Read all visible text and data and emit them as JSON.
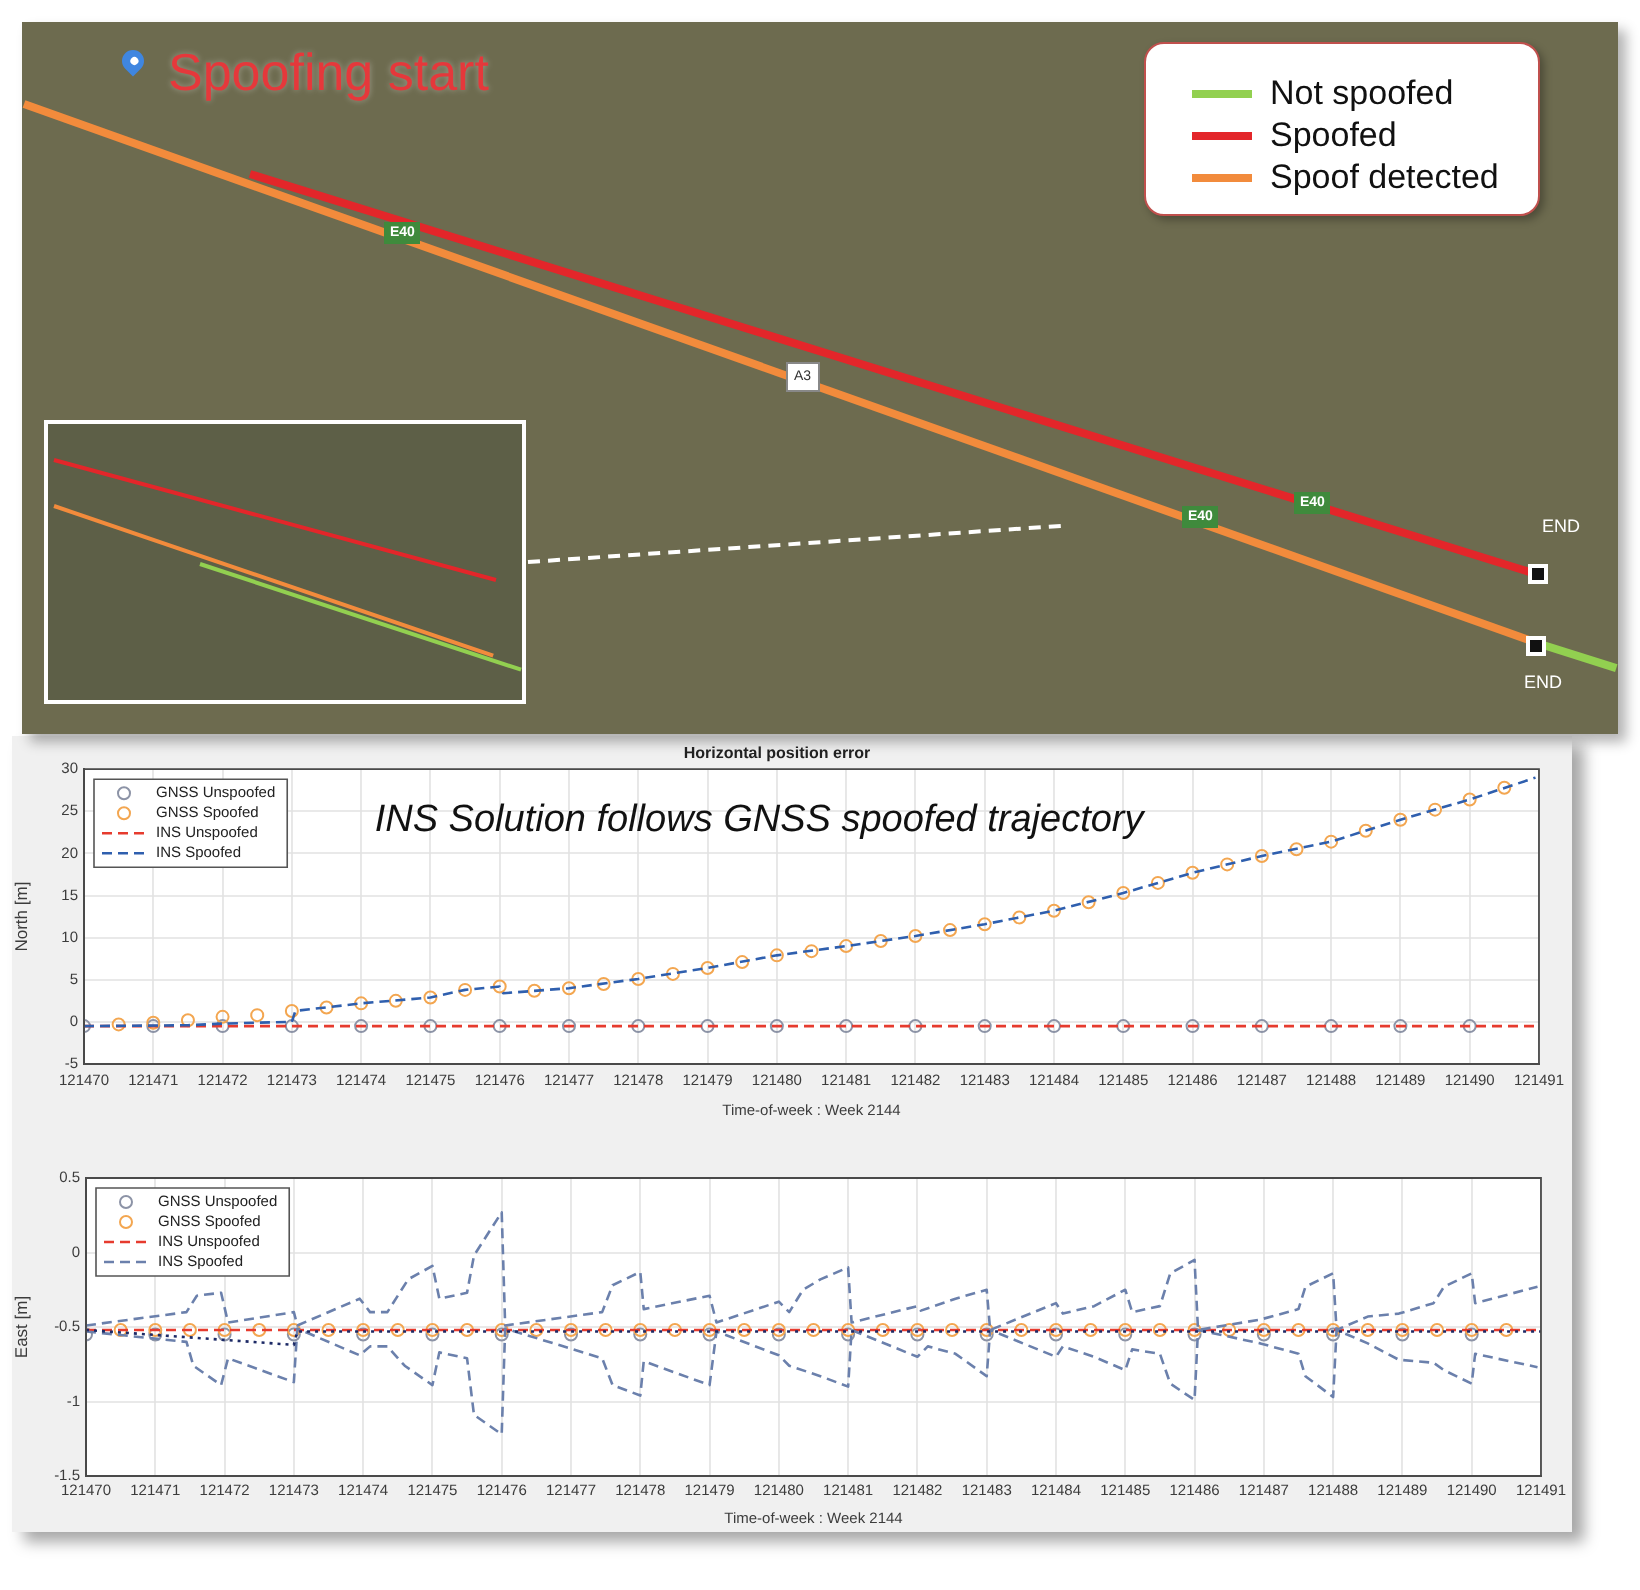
{
  "chart_data": [
    {
      "type": "other",
      "legend": "top right",
      "series": [
        {
          "name": "Not spoofed",
          "color": "#92d050"
        },
        {
          "name": "Spoofed",
          "color": "#e3262a"
        },
        {
          "name": "Spoof detected",
          "color": "#f28b3c"
        }
      ],
      "annotations": [
        "Spoofing start",
        "E40",
        "E40",
        "E40",
        "A3",
        "END",
        "END"
      ]
    },
    {
      "type": "line",
      "title": "Horizontal position error",
      "xlabel": "Time-of-week : Week 2144",
      "ylabel": "North [m]",
      "annotations": [
        "INS Solution follows GNSS spoofed trajectory"
      ],
      "xlim": [
        121470,
        121491
      ],
      "xticks": [
        121470,
        121471,
        121472,
        121473,
        121474,
        121475,
        121476,
        121477,
        121478,
        121479,
        121480,
        121481,
        121482,
        121483,
        121484,
        121485,
        121486,
        121487,
        121488,
        121489,
        121490,
        121491
      ],
      "ylim": [
        -5,
        30
      ],
      "yticks": [
        -5,
        0,
        5,
        10,
        15,
        20,
        25,
        30
      ],
      "grid": true,
      "legend": "top left",
      "series": [
        {
          "name": "GNSS Unspoofed",
          "type": "scatter",
          "marker": "circle",
          "color": "#8c93a6",
          "x": [
            121470,
            121471,
            121472,
            121473,
            121474,
            121475,
            121476,
            121477,
            121478,
            121479,
            121480,
            121481,
            121482,
            121483,
            121484,
            121485,
            121486,
            121487,
            121488,
            121489,
            121490
          ],
          "values": [
            -0.5,
            -0.5,
            -0.5,
            -0.5,
            -0.5,
            -0.5,
            -0.5,
            -0.5,
            -0.5,
            -0.5,
            -0.5,
            -0.5,
            -0.5,
            -0.5,
            -0.5,
            -0.5,
            -0.5,
            -0.5,
            -0.5,
            -0.5,
            -0.5
          ]
        },
        {
          "name": "GNSS Spoofed",
          "type": "scatter",
          "marker": "circle",
          "color": "#f3a650",
          "x": [
            121470.5,
            121471,
            121471.5,
            121472,
            121472.5,
            121473,
            121473.5,
            121474,
            121474.5,
            121475,
            121475.5,
            121476,
            121476.5,
            121477,
            121477.5,
            121478,
            121478.5,
            121479,
            121479.5,
            121480,
            121480.5,
            121481,
            121481.5,
            121482,
            121482.5,
            121483,
            121483.5,
            121484,
            121484.5,
            121485,
            121485.5,
            121486,
            121486.5,
            121487,
            121487.5,
            121488,
            121488.5,
            121489,
            121489.5,
            121490,
            121490.5
          ],
          "values": [
            -0.3,
            -0.1,
            0.2,
            0.6,
            0.8,
            1.3,
            1.7,
            2.2,
            2.5,
            2.9,
            3.8,
            4.2,
            3.7,
            4,
            4.5,
            5.1,
            5.7,
            6.4,
            7.1,
            7.9,
            8.4,
            9,
            9.6,
            10.2,
            10.9,
            11.6,
            12.4,
            13.2,
            14.2,
            15.3,
            16.5,
            17.7,
            18.7,
            19.7,
            20.5,
            21.4,
            22.7,
            24,
            25.2,
            26.4,
            27.8
          ]
        },
        {
          "name": "INS Unspoofed",
          "type": "line",
          "line_style": "dashed",
          "color": "#e63b2e",
          "x": [
            121470,
            121491
          ],
          "values": [
            -0.5,
            -0.5
          ]
        },
        {
          "name": "INS Spoofed",
          "type": "line",
          "line_style": "dashed",
          "color": "#2f5fae",
          "x": [
            121470,
            121471.5,
            121472,
            121473,
            121473.05,
            121474,
            121475,
            121475.5,
            121476,
            121476.05,
            121477,
            121478,
            121479,
            121480,
            121481,
            121482,
            121483,
            121484,
            121485,
            121486,
            121487,
            121488,
            121489,
            121490,
            121490.95
          ],
          "values": [
            -0.5,
            -0.4,
            -0.2,
            0,
            1.3,
            2.2,
            2.9,
            3.8,
            4.2,
            3.4,
            4,
            5.1,
            6.4,
            7.9,
            9,
            10.2,
            11.6,
            13.2,
            15.3,
            17.7,
            19.7,
            21.4,
            24,
            26.4,
            29
          ]
        }
      ]
    },
    {
      "type": "line",
      "xlabel": "Time-of-week : Week 2144",
      "ylabel": "East [m]",
      "xlim": [
        121470,
        121491
      ],
      "xticks": [
        121470,
        121471,
        121472,
        121473,
        121474,
        121475,
        121476,
        121477,
        121478,
        121479,
        121480,
        121481,
        121482,
        121483,
        121484,
        121485,
        121486,
        121487,
        121488,
        121489,
        121490,
        121491
      ],
      "ylim": [
        -1.5,
        0.5
      ],
      "yticks": [
        -1.5,
        -1,
        -0.5,
        0,
        0.5
      ],
      "grid": true,
      "legend": "top left",
      "series": [
        {
          "name": "GNSS Unspoofed",
          "type": "scatter",
          "marker": "circle",
          "color": "#8c93a6",
          "x": [
            121470,
            121471,
            121472,
            121473,
            121474,
            121475,
            121476,
            121477,
            121478,
            121479,
            121480,
            121481,
            121482,
            121483,
            121484,
            121485,
            121486,
            121487,
            121488,
            121489,
            121490
          ],
          "values": [
            -0.55,
            -0.55,
            -0.55,
            -0.55,
            -0.55,
            -0.55,
            -0.55,
            -0.55,
            -0.55,
            -0.55,
            -0.55,
            -0.55,
            -0.55,
            -0.55,
            -0.55,
            -0.55,
            -0.55,
            -0.55,
            -0.55,
            -0.55,
            -0.55
          ]
        },
        {
          "name": "GNSS Spoofed",
          "type": "scatter",
          "marker": "circle",
          "color": "#f3a650",
          "x": [
            121470.5,
            121471,
            121471.5,
            121472,
            121472.5,
            121473,
            121473.5,
            121474,
            121474.5,
            121475,
            121475.5,
            121476,
            121476.5,
            121477,
            121477.5,
            121478,
            121478.5,
            121479,
            121479.5,
            121480,
            121480.5,
            121481,
            121481.5,
            121482,
            121482.5,
            121483,
            121483.5,
            121484,
            121484.5,
            121485,
            121485.5,
            121486,
            121486.5,
            121487,
            121487.5,
            121488,
            121488.5,
            121489,
            121489.5,
            121490,
            121490.5
          ],
          "values": [
            -0.52,
            -0.52,
            -0.52,
            -0.52,
            -0.52,
            -0.52,
            -0.52,
            -0.52,
            -0.52,
            -0.52,
            -0.52,
            -0.52,
            -0.52,
            -0.52,
            -0.52,
            -0.52,
            -0.52,
            -0.52,
            -0.52,
            -0.52,
            -0.52,
            -0.52,
            -0.52,
            -0.52,
            -0.52,
            -0.52,
            -0.52,
            -0.52,
            -0.52,
            -0.52,
            -0.52,
            -0.52,
            -0.52,
            -0.52,
            -0.52,
            -0.52,
            -0.52,
            -0.52,
            -0.52,
            -0.52,
            -0.52
          ]
        },
        {
          "name": "INS Unspoofed",
          "type": "line",
          "line_style": "dashed",
          "color": "#e63b2e",
          "x": [
            121470,
            121491
          ],
          "values": [
            -0.52,
            -0.52
          ]
        },
        {
          "name": "INS Spoofed",
          "type": "line",
          "line_style": "dashed",
          "color": "#6b80ac",
          "x": [
            121470,
            121471.45,
            121471.6,
            121471.95,
            121472.05,
            121473,
            121473.05,
            121473.95,
            121474.1,
            121474.35,
            121474.65,
            121475,
            121475.1,
            121475.5,
            121475.6,
            121476,
            121476.05,
            121477.45,
            121477.6,
            121478,
            121478.05,
            121479,
            121479.1,
            121480,
            121480.15,
            121480.35,
            121480.6,
            121481,
            121481.05,
            121482,
            121482.05,
            121482.55,
            121483,
            121483.05,
            121484,
            121484.1,
            121484.55,
            121485,
            121485.1,
            121485.5,
            121485.65,
            121486,
            121486.05,
            121486.95,
            121487.5,
            121487.6,
            121488,
            121488.05,
            121488.5,
            121488.95,
            121489.45,
            121489.6,
            121490,
            121490.05,
            121490.95
          ],
          "values": [
            -0.49,
            -0.4,
            -0.29,
            -0.27,
            -0.47,
            -0.4,
            -0.49,
            -0.31,
            -0.4,
            -0.4,
            -0.18,
            -0.09,
            -0.31,
            -0.27,
            -0.02,
            0.27,
            -0.49,
            -0.4,
            -0.22,
            -0.13,
            -0.38,
            -0.29,
            -0.47,
            -0.33,
            -0.4,
            -0.25,
            -0.18,
            -0.1,
            -0.47,
            -0.36,
            -0.39,
            -0.31,
            -0.25,
            -0.52,
            -0.34,
            -0.41,
            -0.36,
            -0.25,
            -0.4,
            -0.36,
            -0.14,
            -0.05,
            -0.52,
            -0.45,
            -0.38,
            -0.23,
            -0.14,
            -0.52,
            -0.43,
            -0.41,
            -0.34,
            -0.23,
            -0.14,
            -0.34,
            -0.23
          ]
        },
        {
          "type": "line",
          "line_style": "dashed",
          "color": "#6b80ac",
          "x": [
            121470,
            121471.45,
            121471.55,
            121471.95,
            121472.05,
            121473,
            121473.05,
            121473.95,
            121474.1,
            121474.35,
            121474.6,
            121475,
            121475.1,
            121475.5,
            121475.6,
            121476,
            121476.05,
            121477.45,
            121477.6,
            121478,
            121478.05,
            121479,
            121479.1,
            121480,
            121480.15,
            121480.6,
            121481,
            121481.05,
            121482,
            121482.15,
            121482.55,
            121483,
            121483.05,
            121484,
            121484.1,
            121484.55,
            121485,
            121485.1,
            121485.5,
            121485.65,
            121486,
            121486.05,
            121486.95,
            121487.5,
            121487.6,
            121488,
            121488.05,
            121488.5,
            121488.95,
            121489.45,
            121489.6,
            121490,
            121490.05,
            121490.95
          ],
          "values": [
            -0.53,
            -0.6,
            -0.76,
            -0.89,
            -0.71,
            -0.87,
            -0.51,
            -0.69,
            -0.63,
            -0.63,
            -0.76,
            -0.89,
            -0.67,
            -0.71,
            -1.09,
            -1.22,
            -0.51,
            -0.71,
            -0.89,
            -0.96,
            -0.73,
            -0.89,
            -0.53,
            -0.69,
            -0.76,
            -0.83,
            -0.9,
            -0.52,
            -0.7,
            -0.63,
            -0.68,
            -0.83,
            -0.52,
            -0.7,
            -0.63,
            -0.7,
            -0.79,
            -0.65,
            -0.68,
            -0.88,
            -0.99,
            -0.52,
            -0.61,
            -0.68,
            -0.83,
            -0.97,
            -0.52,
            -0.61,
            -0.72,
            -0.74,
            -0.79,
            -0.88,
            -0.68,
            -0.77
          ]
        },
        {
          "type": "line",
          "line_style": "dotted",
          "color": "#1d2a66",
          "x": [
            121470,
            121473,
            121473.05,
            121491
          ],
          "values": [
            -0.52,
            -0.62,
            -0.53,
            -0.53
          ]
        }
      ]
    }
  ]
}
